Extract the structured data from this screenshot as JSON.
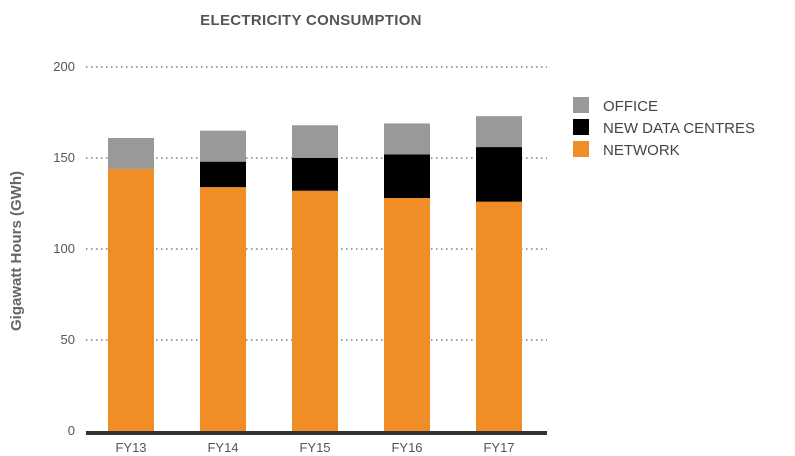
{
  "chart_data": {
    "type": "bar",
    "stacked": true,
    "title": "ELECTRICITY CONSUMPTION",
    "xlabel": "",
    "ylabel": "Gigawatt Hours (GWh)",
    "ylim": [
      0,
      200
    ],
    "yticks": [
      "0",
      "50",
      "100",
      "150",
      "200"
    ],
    "grid": true,
    "legend_position": "top-right",
    "categories": [
      "FY13",
      "FY14",
      "FY15",
      "FY16",
      "FY17"
    ],
    "series": [
      {
        "name": "NETWORK",
        "color": "#f18d27",
        "values": [
          144,
          134,
          132,
          128,
          126
        ]
      },
      {
        "name": "NEW DATA CENTRES",
        "color": "#000000",
        "values": [
          0,
          14,
          18,
          24,
          30
        ]
      },
      {
        "name": "OFFICE",
        "color": "#999999",
        "values": [
          17,
          17,
          18,
          17,
          17
        ]
      }
    ],
    "legend_order": [
      "OFFICE",
      "NEW DATA CENTRES",
      "NETWORK"
    ]
  }
}
